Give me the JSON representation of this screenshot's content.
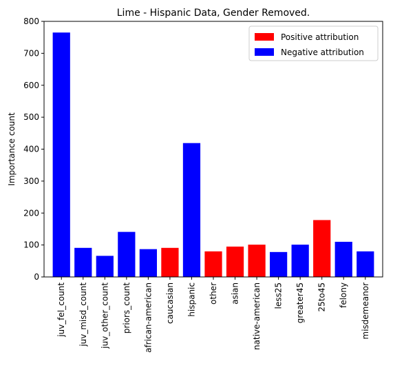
{
  "chart_data": {
    "type": "bar",
    "title": "Lime - Hispanic Data, Gender Removed.",
    "xlabel": "",
    "ylabel": "Importance count",
    "ylim": [
      0,
      800
    ],
    "yticks": [
      0,
      100,
      200,
      300,
      400,
      500,
      600,
      700,
      800
    ],
    "categories": [
      "juv_fel_count",
      "juv_misd_count",
      "juv_other_count",
      "priors_count",
      "african-american",
      "caucasian",
      "hispanic",
      "other",
      "asian",
      "native-american",
      "less25",
      "greater45",
      "25to45",
      "felony",
      "misdemeanor"
    ],
    "values": [
      765,
      91,
      66,
      141,
      87,
      91,
      419,
      80,
      95,
      101,
      78,
      101,
      178,
      110,
      80
    ],
    "attribution": [
      "negative",
      "negative",
      "negative",
      "negative",
      "negative",
      "positive",
      "negative",
      "positive",
      "positive",
      "positive",
      "negative",
      "negative",
      "positive",
      "negative",
      "negative"
    ],
    "colors": {
      "positive": "#ff0000",
      "negative": "#0000ff"
    },
    "legend": {
      "position": "top-right",
      "entries": [
        {
          "label": "Positive attribution",
          "color": "#ff0000"
        },
        {
          "label": "Negative attribution",
          "color": "#0000ff"
        }
      ]
    },
    "grid": false
  }
}
